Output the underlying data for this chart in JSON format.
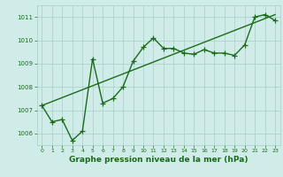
{
  "line1_x": [
    0,
    1,
    2,
    3,
    4,
    5,
    6,
    7,
    8,
    9,
    10,
    11,
    12,
    13,
    14,
    15,
    16,
    17,
    18,
    19,
    20,
    21,
    22,
    23
  ],
  "line1_y": [
    1007.2,
    1006.5,
    1006.6,
    1005.7,
    1006.1,
    1009.2,
    1007.3,
    1007.5,
    1008.0,
    1009.1,
    1009.7,
    1010.1,
    1009.65,
    1009.65,
    1009.45,
    1009.4,
    1009.6,
    1009.45,
    1009.45,
    1009.35,
    1009.8,
    1011.0,
    1011.1,
    1010.85
  ],
  "line2_x": [
    0,
    23
  ],
  "line2_y": [
    1007.2,
    1011.1
  ],
  "line_color": "#1a6b1a",
  "bg_color": "#d0ece8",
  "grid_color": "#a8cdc8",
  "xlabel": "Graphe pression niveau de la mer (hPa)",
  "xlabel_fontsize": 6.5,
  "yticks": [
    1006,
    1007,
    1008,
    1009,
    1010,
    1011
  ],
  "xticks": [
    0,
    1,
    2,
    3,
    4,
    5,
    6,
    7,
    8,
    9,
    10,
    11,
    12,
    13,
    14,
    15,
    16,
    17,
    18,
    19,
    20,
    21,
    22,
    23
  ],
  "ylim": [
    1005.5,
    1011.5
  ],
  "xlim": [
    -0.5,
    23.5
  ],
  "marker": "+",
  "marker_size": 4,
  "linewidth": 1.0
}
